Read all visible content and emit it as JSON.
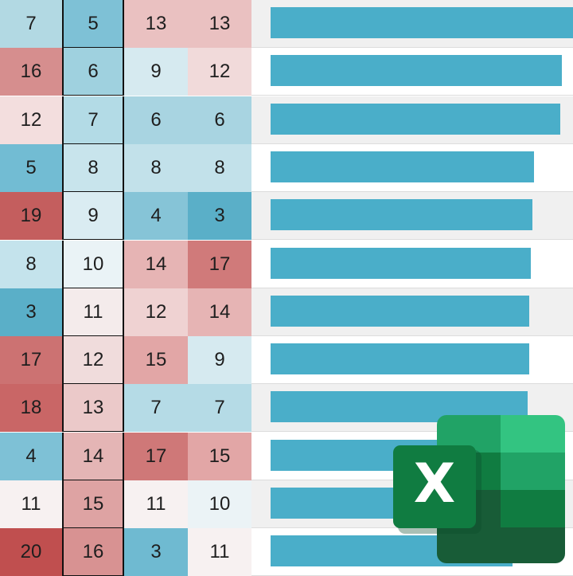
{
  "sheet": {
    "rows": [
      {
        "cells": [
          "7",
          "5",
          "13",
          "13"
        ],
        "colors": [
          "#b2d9e3",
          "#7ec1d6",
          "#eac1c1",
          "#eac1c1"
        ],
        "bar_fraction": 1.0
      },
      {
        "cells": [
          "16",
          "6",
          "9",
          "12"
        ],
        "colors": [
          "#d68e8e",
          "#9fd1df",
          "#d6eaf0",
          "#f1dada"
        ],
        "bar_fraction": 0.962
      },
      {
        "cells": [
          "12",
          "7",
          "6",
          "6"
        ],
        "colors": [
          "#f3dede",
          "#b3dbe6",
          "#a8d4e1",
          "#a8d4e1"
        ],
        "bar_fraction": 0.957
      },
      {
        "cells": [
          "5",
          "8",
          "8",
          "8"
        ],
        "colors": [
          "#72bcd3",
          "#c8e4ec",
          "#c2e1ea",
          "#c2e1ea"
        ],
        "bar_fraction": 0.87
      },
      {
        "cells": [
          "19",
          "9",
          "4",
          "3"
        ],
        "colors": [
          "#c45e5e",
          "#daecf2",
          "#86c4d7",
          "#5aafc8"
        ],
        "bar_fraction": 0.865
      },
      {
        "cells": [
          "8",
          "10",
          "14",
          "17"
        ],
        "colors": [
          "#c4e3ec",
          "#eaf3f6",
          "#e6b4b4",
          "#d07a7a"
        ],
        "bar_fraction": 0.86
      },
      {
        "cells": [
          "3",
          "11",
          "12",
          "14"
        ],
        "colors": [
          "#5aafc8",
          "#f4ebeb",
          "#efd2d2",
          "#e6b4b4"
        ],
        "bar_fraction": 0.855
      },
      {
        "cells": [
          "17",
          "12",
          "15",
          "9"
        ],
        "colors": [
          "#cc7272",
          "#f0dcdc",
          "#e2a6a6",
          "#d6eaf0"
        ],
        "bar_fraction": 0.855
      },
      {
        "cells": [
          "18",
          "13",
          "7",
          "7"
        ],
        "colors": [
          "#c96666",
          "#ebc9c9",
          "#b5dbe6",
          "#b5dbe6"
        ],
        "bar_fraction": 0.85
      },
      {
        "cells": [
          "4",
          "14",
          "17",
          "15"
        ],
        "colors": [
          "#7ec1d6",
          "#e4b5b5",
          "#cf7878",
          "#e2a6a6"
        ],
        "bar_fraction": 0.84
      },
      {
        "cells": [
          "11",
          "15",
          "11",
          "10"
        ],
        "colors": [
          "#f7f1f1",
          "#dea3a3",
          "#f7f1f1",
          "#ebf3f6"
        ],
        "bar_fraction": 0.83
      },
      {
        "cells": [
          "20",
          "16",
          "3",
          "11"
        ],
        "colors": [
          "#c04f4f",
          "#d89292",
          "#6fbad1",
          "#f7f1f1"
        ],
        "bar_fraction": 0.8
      }
    ],
    "bar_color": "#4aaec9",
    "header_row_bg": "#f0f0f0"
  },
  "logo": {
    "name": "excel-icon",
    "letter": "X",
    "colors": {
      "dark_green": "#185c37",
      "green": "#21a366",
      "light_green": "#33c481",
      "mid_green": "#107c41",
      "shadow_green": "#0e6b35"
    }
  }
}
